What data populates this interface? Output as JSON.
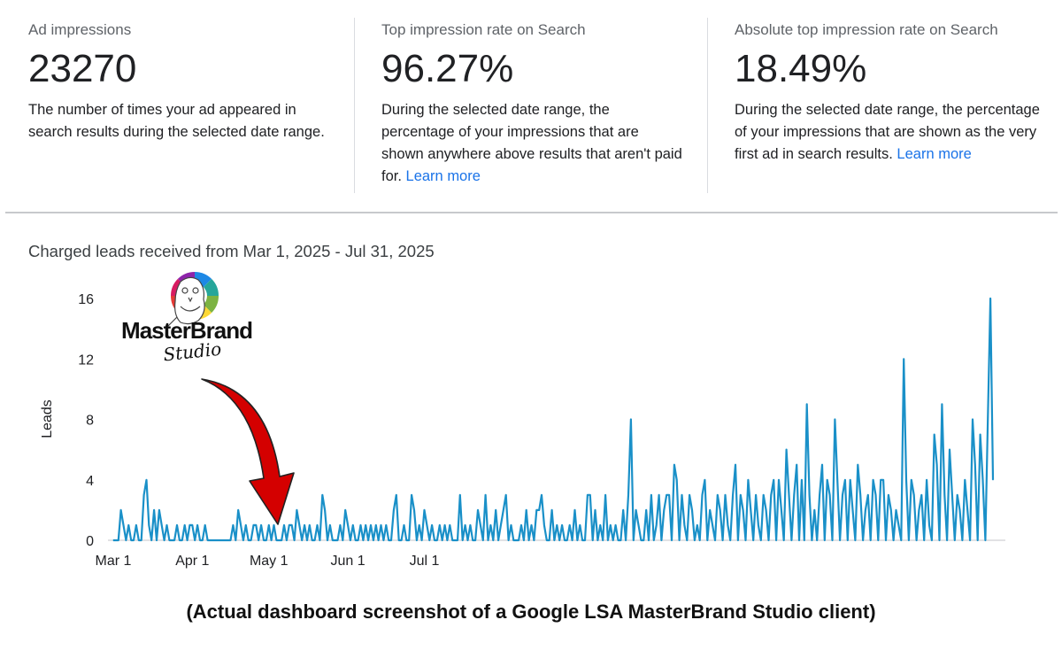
{
  "metrics": [
    {
      "label": "Ad impressions",
      "value": "23270",
      "description": "The number of times your ad appeared in search results during the selected date range.",
      "link": ""
    },
    {
      "label": "Top impression rate on Search",
      "value": "96.27%",
      "description": "During the selected date range, the percentage of your impressions that are shown anywhere above results that aren't paid for.",
      "link": "Learn more"
    },
    {
      "label": "Absolute top impression rate on Search",
      "value": "18.49%",
      "description": "During the selected date range, the percentage of your impressions that are shown as the very first ad in search results.",
      "link": "Learn more"
    }
  ],
  "chart_title": "Charged leads received from Mar 1, 2025 - Jul 31, 2025",
  "logo": {
    "text_main": "MasterBrand",
    "text_script": "Studio"
  },
  "caption": "(Actual dashboard screenshot of a Google LSA MasterBrand Studio client)",
  "colors": {
    "line": "#1a90c8",
    "link": "#1a73e8",
    "arrow": "#d40000"
  },
  "chart_data": {
    "type": "line",
    "title": "Charged leads received from Mar 1, 2025 - Jul 31, 2025",
    "xlabel": "",
    "ylabel": "Leads",
    "ylim": [
      0,
      16
    ],
    "yticks": [
      0,
      4,
      8,
      12,
      16
    ],
    "xtick_labels": [
      "Mar 1",
      "Apr 1",
      "May 1",
      "Jun 1",
      "Jul 1"
    ],
    "xtick_days": [
      0,
      31,
      61,
      92,
      122
    ],
    "grid": false,
    "series": [
      {
        "values": [
          0,
          0,
          0,
          2,
          1,
          0,
          1,
          0,
          0,
          1,
          0,
          0,
          3,
          4,
          1,
          0,
          2,
          0,
          2,
          1,
          0,
          1,
          0,
          0,
          0,
          1,
          0,
          0,
          1,
          0,
          1,
          1,
          0,
          1,
          0,
          0,
          1,
          0,
          0,
          0,
          0,
          0,
          0,
          0,
          0,
          0,
          0,
          1,
          0,
          2,
          1,
          0,
          1,
          0,
          0,
          1,
          1,
          0,
          1,
          0,
          0,
          1,
          0,
          1,
          0,
          0,
          0,
          1,
          0,
          1,
          1,
          0,
          2,
          1,
          0,
          1,
          0,
          1,
          0,
          0,
          1,
          0,
          3,
          2,
          0,
          1,
          0,
          0,
          0,
          1,
          0,
          2,
          1,
          0,
          1,
          0,
          0,
          1,
          0,
          1,
          0,
          1,
          0,
          1,
          0,
          1,
          0,
          1,
          0,
          0,
          2,
          3,
          0,
          0,
          1,
          0,
          0,
          3,
          2,
          0,
          1,
          0,
          2,
          1,
          0,
          1,
          0,
          0,
          1,
          0,
          1,
          0,
          1,
          0,
          0,
          0,
          3,
          0,
          1,
          0,
          1,
          0,
          0,
          2,
          1,
          0,
          3,
          0,
          1,
          0,
          2,
          0,
          1,
          2,
          3,
          0,
          1,
          0,
          0,
          0,
          1,
          0,
          2,
          0,
          1,
          0,
          2,
          2,
          3,
          1,
          0,
          0,
          2,
          0,
          1,
          0,
          1,
          0,
          0,
          1,
          0,
          2,
          0,
          1,
          0,
          0,
          3,
          3,
          0,
          2,
          0,
          1,
          0,
          3,
          0,
          1,
          0,
          1,
          0,
          0,
          2,
          0,
          3,
          8,
          0,
          2,
          1,
          0,
          0,
          2,
          0,
          3,
          0,
          1,
          3,
          0,
          2,
          3,
          3,
          0,
          5,
          4,
          0,
          3,
          1,
          0,
          3,
          2,
          0,
          1,
          0,
          3,
          4,
          0,
          2,
          1,
          0,
          3,
          2,
          0,
          3,
          1,
          0,
          3,
          5,
          0,
          3,
          2,
          0,
          4,
          2,
          0,
          3,
          1,
          0,
          3,
          2,
          0,
          3,
          4,
          0,
          4,
          2,
          0,
          6,
          3,
          0,
          3,
          5,
          0,
          4,
          0,
          9,
          3,
          0,
          2,
          0,
          3,
          5,
          0,
          4,
          3,
          0,
          8,
          4,
          0,
          3,
          4,
          0,
          4,
          2,
          0,
          5,
          3,
          0,
          2,
          3,
          0,
          4,
          3,
          0,
          4,
          4,
          0,
          3,
          2,
          0,
          2,
          1,
          0,
          12,
          4,
          0,
          4,
          3,
          0,
          2,
          3,
          0,
          4,
          1,
          0,
          7,
          5,
          0,
          9,
          3,
          0,
          6,
          3,
          0,
          3,
          2,
          0,
          4,
          2,
          0,
          8,
          5,
          0,
          7,
          4,
          0,
          8,
          16,
          4
        ]
      }
    ]
  }
}
